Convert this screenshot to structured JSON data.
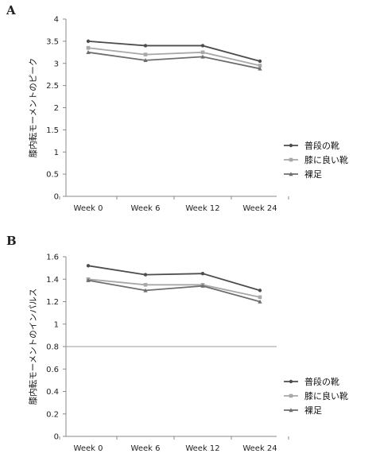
{
  "chart_data": [
    {
      "panel": "A",
      "type": "line",
      "ylabel": "膝内転モーメントのピーク",
      "xlabel": "",
      "categories": [
        "Week 0",
        "Week 6",
        "Week 12",
        "Week 24"
      ],
      "ylim": [
        0,
        4
      ],
      "yticks": [
        "0",
        "0.5",
        "1",
        "1.5",
        "2",
        "2.5",
        "3",
        "3.5",
        "4"
      ],
      "series": [
        {
          "name": "普段の靴",
          "values": [
            3.5,
            3.4,
            3.4,
            3.05
          ],
          "color": "#4d4d4d"
        },
        {
          "name": "膝に良い靴",
          "values": [
            3.35,
            3.2,
            3.25,
            2.95
          ],
          "color": "#a8a8a8"
        },
        {
          "name": "裸足",
          "values": [
            3.25,
            3.07,
            3.15,
            2.88
          ],
          "color": "#6e6e6e"
        }
      ],
      "grid": false,
      "legend": "right"
    },
    {
      "panel": "B",
      "type": "line",
      "ylabel": "膝内転モーメントのインパルス",
      "xlabel": "",
      "categories": [
        "Week 0",
        "Week 6",
        "Week 12",
        "Week 24"
      ],
      "ylim": [
        0,
        1.6
      ],
      "yticks": [
        "0",
        "0.2",
        "0.4",
        "0.6",
        "0.8",
        "1",
        "1.2",
        "1.4",
        "1.6"
      ],
      "series": [
        {
          "name": "普段の靴",
          "values": [
            1.52,
            1.44,
            1.45,
            1.3
          ],
          "color": "#4d4d4d"
        },
        {
          "name": "膝に良い靴",
          "values": [
            1.4,
            1.35,
            1.35,
            1.24
          ],
          "color": "#a8a8a8"
        },
        {
          "name": "裸足",
          "values": [
            1.39,
            1.3,
            1.34,
            1.2
          ],
          "color": "#6e6e6e"
        }
      ],
      "grid": false,
      "reference_line": 0.8,
      "legend": "right"
    }
  ]
}
